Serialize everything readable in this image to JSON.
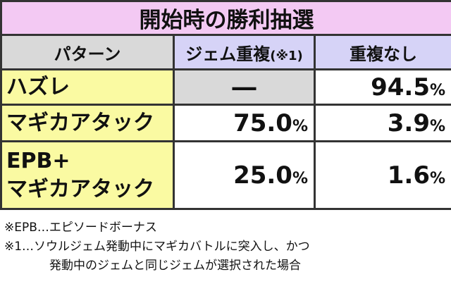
{
  "title": "開始時の勝利抽選",
  "table": {
    "header": [
      "パターン",
      {
        "text": "ジェム重複",
        "note": "(※1)"
      },
      "重複なし"
    ],
    "rows": [
      [
        [
          "ハズレ"
        ],
        "―",
        {
          "value": "94.5",
          "unit": "%"
        }
      ],
      [
        [
          "マギカアタック"
        ],
        {
          "value": "75.0",
          "unit": "%"
        },
        {
          "value": "3.9",
          "unit": "%"
        }
      ],
      [
        [
          "EPB+",
          "マギカアタック"
        ],
        {
          "value": "25.0",
          "unit": "%"
        },
        {
          "value": "1.6",
          "unit": "%"
        }
      ]
    ]
  },
  "notes": [
    "※EPB…エピソードボーナス",
    "※1…ソウルジェム発動中にマギカバトルに突入し、かつ",
    "発動中のジェムと同じジェムが選択された場合"
  ]
}
